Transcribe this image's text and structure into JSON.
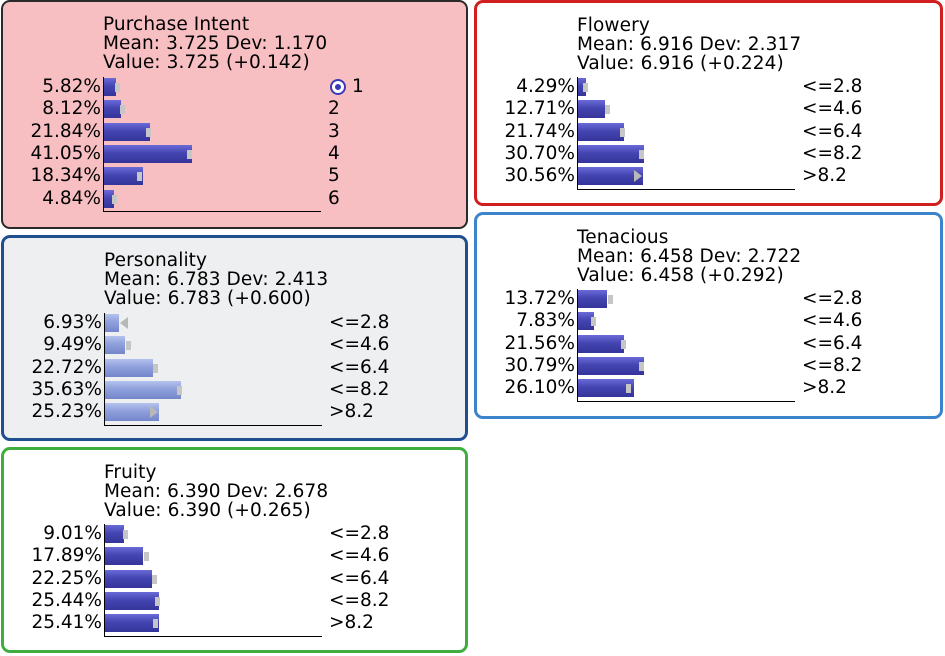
{
  "colors": {
    "purchase_bg": "#f8bfc3",
    "purchase_border": "#2a2a2a",
    "flowery_border": "#d11e1e",
    "personality_bg": "#eeeff0",
    "personality_border": "#1f4f8f",
    "tenacious_border": "#3b84cc",
    "fruity_border": "#3fae3f",
    "bar": "#4545b2",
    "bar_light": "#8fa0dc"
  },
  "nodes": [
    {
      "id": "purchase-intent",
      "title": "Purchase Intent",
      "mean_text": "Mean: 3.725 Dev: 1.170",
      "value_text": "Value: 3.725 (+0.142)",
      "states": [
        {
          "pct_text": "5.82%",
          "pct": 5.82,
          "prior": 6.9,
          "label": "1",
          "evidence_icon": "target-icon"
        },
        {
          "pct_text": "8.12%",
          "pct": 8.12,
          "prior": 9.2,
          "label": "2"
        },
        {
          "pct_text": "21.84%",
          "pct": 21.84,
          "prior": 21.0,
          "label": "3"
        },
        {
          "pct_text": "41.05%",
          "pct": 41.05,
          "prior": 40.0,
          "label": "4"
        },
        {
          "pct_text": "18.34%",
          "pct": 18.34,
          "prior": 17.0,
          "label": "5"
        },
        {
          "pct_text": "4.84%",
          "pct": 4.84,
          "prior": 5.4,
          "label": "6"
        }
      ]
    },
    {
      "id": "flowery",
      "title": "Flowery",
      "mean_text": "Mean: 6.916 Dev: 2.317",
      "value_text": "Value: 6.916 (+0.224)",
      "states": [
        {
          "pct_text": "4.29%",
          "pct": 4.29,
          "prior": 4.3,
          "label": "<=2.8"
        },
        {
          "pct_text": "12.71%",
          "pct": 12.71,
          "prior": 14.5,
          "label": "<=4.6"
        },
        {
          "pct_text": "21.74%",
          "pct": 21.74,
          "prior": 21.0,
          "label": "<=6.4"
        },
        {
          "pct_text": "30.70%",
          "pct": 30.7,
          "prior": 30.0,
          "label": "<=8.2"
        },
        {
          "pct_text": "30.56%",
          "pct": 30.56,
          "prior": 27.0,
          "label": ">8.2",
          "arrow": "right"
        }
      ]
    },
    {
      "id": "personality",
      "title": "Personality",
      "mean_text": "Mean: 6.783 Dev: 2.413",
      "value_text": "Value: 6.783 (+0.600)",
      "light": true,
      "states": [
        {
          "pct_text": "6.93%",
          "pct": 6.93,
          "prior": 11.5,
          "label": "<=2.8",
          "arrow": "left"
        },
        {
          "pct_text": "9.49%",
          "pct": 9.49,
          "prior": 11.5,
          "label": "<=4.6"
        },
        {
          "pct_text": "22.72%",
          "pct": 22.72,
          "prior": 24.0,
          "label": "<=6.4"
        },
        {
          "pct_text": "35.63%",
          "pct": 35.63,
          "prior": 35.0,
          "label": "<=8.2"
        },
        {
          "pct_text": "25.23%",
          "pct": 25.23,
          "prior": 20.0,
          "label": ">8.2",
          "arrow": "right"
        }
      ]
    },
    {
      "id": "tenacious",
      "title": "Tenacious",
      "mean_text": "Mean: 6.458 Dev: 2.722",
      "value_text": "Value: 6.458 (+0.292)",
      "states": [
        {
          "pct_text": "13.72%",
          "pct": 13.72,
          "prior": 15.5,
          "label": "<=2.8"
        },
        {
          "pct_text": "7.83%",
          "pct": 7.83,
          "prior": 7.9,
          "label": "<=4.6"
        },
        {
          "pct_text": "21.56%",
          "pct": 21.56,
          "prior": 21.5,
          "label": "<=6.4"
        },
        {
          "pct_text": "30.79%",
          "pct": 30.79,
          "prior": 30.0,
          "label": "<=8.2"
        },
        {
          "pct_text": "26.10%",
          "pct": 26.1,
          "prior": 24.0,
          "label": ">8.2"
        }
      ]
    },
    {
      "id": "fruity",
      "title": "Fruity",
      "mean_text": "Mean: 6.390 Dev: 2.678",
      "value_text": "Value: 6.390 (+0.265)",
      "states": [
        {
          "pct_text": "9.01%",
          "pct": 9.01,
          "prior": 10.0,
          "label": "<=2.8"
        },
        {
          "pct_text": "17.89%",
          "pct": 17.89,
          "prior": 20.0,
          "label": "<=4.6"
        },
        {
          "pct_text": "22.25%",
          "pct": 22.25,
          "prior": 23.5,
          "label": "<=6.4"
        },
        {
          "pct_text": "25.44%",
          "pct": 25.44,
          "prior": 25.0,
          "label": "<=8.2"
        },
        {
          "pct_text": "25.41%",
          "pct": 25.41,
          "prior": 24.0,
          "label": ">8.2"
        }
      ]
    }
  ]
}
